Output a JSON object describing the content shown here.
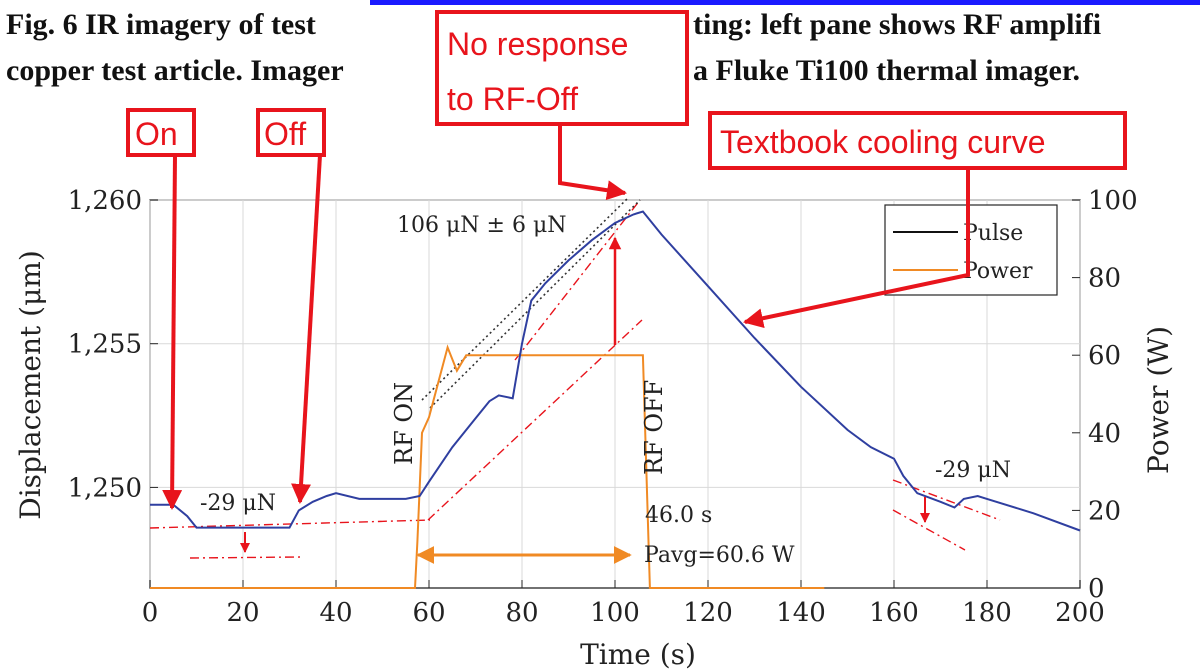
{
  "caption": {
    "line1_left": "Fig. 6    IR imagery of test",
    "line1_right": "ting: left pane shows RF amplifi",
    "line2_left": "copper test article. Imager",
    "line2_right": "a Fluke Ti100 thermal imager."
  },
  "colors": {
    "pulse": "#2f3fa0",
    "power": "#f08a24",
    "annotation": "#e8141c",
    "fit": "#e8141c",
    "caption_underline": "#1a1aff"
  },
  "annotations": {
    "no_response": [
      "No response",
      "to RF-Off"
    ],
    "textbook": "Textbook cooling curve",
    "on": "On",
    "off": "Off"
  },
  "chart_data": {
    "type": "line",
    "xlabel": "Time (s)",
    "ylabel_left": "Displacement (μm)",
    "ylabel_right": "Power (W)",
    "xlim": [
      0,
      200
    ],
    "ylim_left": [
      1246.5,
      1260
    ],
    "ylim_right": [
      0,
      100
    ],
    "x_ticks": [
      0,
      20,
      40,
      60,
      80,
      100,
      120,
      140,
      160,
      180,
      200
    ],
    "y_ticks_left": [
      "1,250",
      "1,255",
      "1,260"
    ],
    "y_ticks_left_values": [
      1250,
      1255,
      1260
    ],
    "y_ticks_right": [
      0,
      20,
      40,
      60,
      80,
      100
    ],
    "grid": true,
    "legend": {
      "placement": "top-right",
      "entries": [
        "Pulse",
        "Power"
      ]
    },
    "series": [
      {
        "name": "Pulse",
        "axis": "left",
        "x": [
          0,
          5,
          8,
          10,
          20,
          30,
          32,
          35,
          38,
          40,
          45,
          50,
          55,
          58,
          60,
          65,
          70,
          73,
          75,
          78,
          80,
          82,
          85,
          90,
          95,
          100,
          104,
          106,
          110,
          120,
          130,
          140,
          150,
          155,
          160,
          162,
          165,
          170,
          173,
          175,
          178,
          180,
          190,
          200
        ],
        "y": [
          1249.4,
          1249.4,
          1249.0,
          1248.6,
          1248.6,
          1248.6,
          1249.2,
          1249.5,
          1249.7,
          1249.8,
          1249.6,
          1249.6,
          1249.6,
          1249.7,
          1250.2,
          1251.4,
          1252.4,
          1253.0,
          1253.2,
          1253.1,
          1255.0,
          1256.5,
          1257.1,
          1257.9,
          1258.6,
          1259.2,
          1259.5,
          1259.6,
          1258.8,
          1257.0,
          1255.2,
          1253.5,
          1252.0,
          1251.4,
          1251.0,
          1250.4,
          1249.8,
          1249.5,
          1249.3,
          1249.6,
          1249.7,
          1249.6,
          1249.1,
          1248.5
        ]
      },
      {
        "name": "Power",
        "axis": "right",
        "x": [
          0,
          57,
          57.5,
          58.5,
          60,
          64,
          66,
          68,
          70,
          80,
          90,
          100,
          104,
          106,
          107.5,
          108,
          145
        ],
        "y": [
          0,
          0,
          12,
          40,
          44,
          62,
          56,
          60,
          60,
          60,
          60,
          60,
          60,
          60,
          0,
          0,
          0
        ]
      }
    ],
    "annotations": [
      {
        "text": "-29 μN",
        "x": 20,
        "y": 1250
      },
      {
        "text": "-29 μN",
        "x": 170,
        "y": 1250
      },
      {
        "text": "106 μN ± 6 μN",
        "x": 90,
        "y": 1259
      },
      {
        "text": "RF ON",
        "x": 58,
        "y": 1253
      },
      {
        "text": "RF OFF",
        "x": 110,
        "y": 1253
      },
      {
        "text": "46.0 s",
        "x": 116,
        "y": 17
      },
      {
        "text": "Pavg=60.6 W",
        "x": 116,
        "y": 6
      }
    ]
  }
}
